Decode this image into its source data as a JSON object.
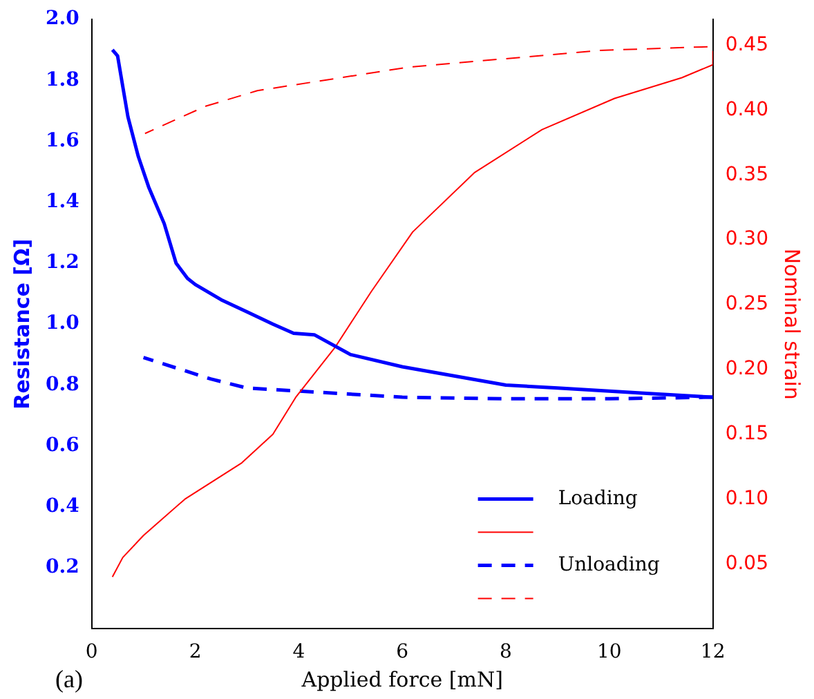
{
  "chart_data": {
    "type": "line",
    "xlabel": "Applied force [mN]",
    "ylabel": "Resistance [Ω]",
    "y2label": "Nominal strain",
    "xlim": [
      0,
      12
    ],
    "xticks": [
      0,
      2,
      4,
      6,
      8,
      10,
      12
    ],
    "ylim": [
      0,
      2.0
    ],
    "yticks": [
      0.2,
      0.4,
      0.6,
      0.8,
      {
        "value": 1.0,
        "label": "1.0"
      },
      1.2,
      1.4,
      1.6,
      1.8,
      {
        "value": 2.0,
        "label": "2.0"
      }
    ],
    "y2lim": [
      0,
      0.47
    ],
    "y2ticks": [
      0.05,
      {
        "value": 0.1,
        "label": "0.10"
      },
      0.15,
      {
        "value": 0.2,
        "label": "0.20"
      },
      0.25,
      {
        "value": 0.3,
        "label": "0.30"
      },
      0.35,
      {
        "value": 0.4,
        "label": "0.40"
      },
      0.45
    ],
    "grid": false,
    "legend": "bottom right",
    "marker": "none",
    "annotations": [
      "(a)"
    ],
    "series": [
      {
        "name": "Loading",
        "color": "#0000ff",
        "line_style": "solid",
        "x": [
          0.4,
          0.5,
          0.6,
          0.7,
          0.9,
          1.1,
          1.4,
          1.63,
          1.85,
          2.0,
          2.5,
          3.0,
          3.5,
          3.9,
          4.3,
          5.0,
          6.0,
          7.0,
          8.0,
          9.0,
          10.0,
          11.0,
          12.0
        ],
        "values": [
          1.9,
          1.88,
          1.78,
          1.68,
          1.55,
          1.45,
          1.33,
          1.2,
          1.15,
          1.13,
          1.08,
          1.04,
          1.0,
          0.97,
          0.965,
          0.9,
          0.86,
          0.83,
          0.8,
          0.79,
          0.78,
          0.77,
          0.76
        ]
      },
      {
        "color": "#ff0000",
        "line_style": "solid",
        "axis": "y2",
        "x": [
          0.4,
          0.6,
          1.0,
          1.8,
          2.9,
          3.5,
          3.95,
          4.7,
          5.4,
          6.2,
          7.4,
          8.7,
          10.1,
          11.4,
          12.0
        ],
        "values": [
          0.04,
          0.055,
          0.072,
          0.1,
          0.128,
          0.15,
          0.179,
          0.217,
          0.26,
          0.306,
          0.352,
          0.385,
          0.409,
          0.425,
          0.435
        ]
      },
      {
        "name": "Unloading",
        "color": "#0000ff",
        "line_style": "dashed",
        "x": [
          12.0,
          10.0,
          8.0,
          6.0,
          4.0,
          3.0,
          2.3,
          1.0
        ],
        "values": [
          0.76,
          0.755,
          0.755,
          0.76,
          0.78,
          0.79,
          0.82,
          0.89
        ]
      },
      {
        "color": "#ff0000",
        "line_style": "dashed",
        "axis": "y2",
        "x": [
          12.0,
          12.0,
          9.8,
          6.1,
          3.2,
          2.2,
          1.03
        ],
        "values": [
          0.435,
          0.449,
          0.446,
          0.433,
          0.415,
          0.403,
          0.382
        ]
      }
    ]
  }
}
